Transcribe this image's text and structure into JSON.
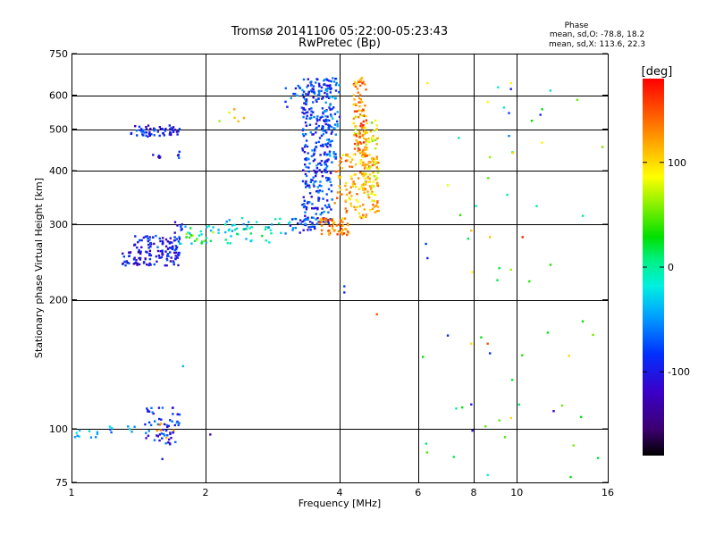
{
  "chart_data": {
    "type": "scatter",
    "title": "Tromsø 20141106 05:22:00-05:23:43",
    "subtitle": "RwPretec (Bp)",
    "xlabel": "Frequency [MHz]",
    "ylabel": "Stationary phase Virtual Height [km]",
    "x_scale": "log",
    "y_scale": "log",
    "xlim": [
      1,
      16
    ],
    "ylim": [
      75,
      750
    ],
    "x_ticks": [
      1,
      2,
      4,
      6,
      8,
      10,
      16
    ],
    "y_ticks": [
      75,
      100,
      200,
      300,
      400,
      500,
      600,
      750
    ],
    "x_grid": [
      2,
      4,
      6,
      8,
      10
    ],
    "y_grid": [
      100,
      200,
      300,
      400,
      500,
      600
    ],
    "grid": true,
    "phase_info": {
      "title": "Phase",
      "line_o": "mean, sd,O: -78.8, 18.2",
      "line_x": "mean, sd,X: 113.6, 22.3"
    },
    "colorbar": {
      "label": "[deg]",
      "min": -180,
      "max": 180,
      "ticks": [
        100,
        0,
        -100
      ],
      "position": "right"
    },
    "point_groups": [
      {
        "x": [
          1.36,
          1.75
        ],
        "y": [
          480,
          510
        ],
        "phase": -100,
        "n": 60
      },
      {
        "x": [
          1.5,
          1.6
        ],
        "y": [
          428,
          438
        ],
        "phase": -100,
        "n": 5
      },
      {
        "x": [
          1.72,
          1.76
        ],
        "y": [
          415,
          460
        ],
        "phase": -100,
        "n": 4
      },
      {
        "x": [
          1.3,
          1.75
        ],
        "y": [
          240,
          262
        ],
        "phase": -105,
        "n": 90
      },
      {
        "x": [
          1.38,
          1.75
        ],
        "y": [
          262,
          282
        ],
        "phase": -100,
        "n": 60
      },
      {
        "x": [
          1.7,
          1.78
        ],
        "y": [
          285,
          305
        ],
        "phase": -100,
        "n": 8
      },
      {
        "x": [
          1.75,
          2.9
        ],
        "y": [
          270,
          300
        ],
        "phase": -10,
        "n": 45
      },
      {
        "x": [
          1.8,
          2.1
        ],
        "y": [
          270,
          292
        ],
        "phase": 40,
        "n": 10
      },
      {
        "x": [
          2.2,
          3.2
        ],
        "y": [
          285,
          310
        ],
        "phase": -30,
        "n": 25
      },
      {
        "x": [
          3.0,
          3.5
        ],
        "y": [
          560,
          660
        ],
        "phase": -80,
        "n": 22
      },
      {
        "x": [
          3.1,
          3.55
        ],
        "y": [
          285,
          310
        ],
        "phase": -80,
        "n": 25
      },
      {
        "x": [
          3.3,
          3.85
        ],
        "y": [
          300,
          660
        ],
        "phase": -85,
        "n": 320
      },
      {
        "x": [
          3.7,
          4.0
        ],
        "y": [
          420,
          660
        ],
        "phase": -70,
        "n": 60
      },
      {
        "x": [
          3.6,
          4.2
        ],
        "y": [
          283,
          310
        ],
        "phase": 130,
        "n": 60
      },
      {
        "x": [
          3.9,
          4.9
        ],
        "y": [
          310,
          440
        ],
        "phase": 120,
        "n": 150
      },
      {
        "x": [
          4.3,
          4.6
        ],
        "y": [
          430,
          660
        ],
        "phase": 135,
        "n": 90
      },
      {
        "x": [
          4.5,
          4.9
        ],
        "y": [
          340,
          500
        ],
        "phase": 95,
        "n": 60
      },
      {
        "x": [
          4.3,
          4.9
        ],
        "y": [
          445,
          555
        ],
        "phase": 80,
        "n": 20
      },
      {
        "x": [
          2.1,
          2.6
        ],
        "y": [
          520,
          560
        ],
        "phase": 90,
        "n": 6
      },
      {
        "x": [
          1.0,
          1.15
        ],
        "y": [
          95,
          100
        ],
        "phase": -50,
        "n": 10
      },
      {
        "x": [
          1.2,
          1.4
        ],
        "y": [
          97,
          103
        ],
        "phase": -60,
        "n": 8
      },
      {
        "x": [
          1.45,
          1.75
        ],
        "y": [
          92,
          112
        ],
        "phase": -90,
        "n": 60
      },
      {
        "x": [
          1.55,
          1.7
        ],
        "y": [
          95,
          103
        ],
        "phase": 130,
        "n": 6
      },
      {
        "x": [
          6.0,
          16.0
        ],
        "y": [
          75,
          650
        ],
        "phase": 20,
        "n": 40
      }
    ],
    "single_points": [
      {
        "x": 4.85,
        "y": 185,
        "phase": 150
      },
      {
        "x": 4.1,
        "y": 215,
        "phase": -80
      },
      {
        "x": 4.1,
        "y": 208,
        "phase": -90
      },
      {
        "x": 1.78,
        "y": 140,
        "phase": -40
      },
      {
        "x": 1.6,
        "y": 85,
        "phase": -100
      },
      {
        "x": 2.05,
        "y": 97,
        "phase": -130
      },
      {
        "x": 6.3,
        "y": 640,
        "phase": 90
      },
      {
        "x": 6.25,
        "y": 270,
        "phase": -80
      },
      {
        "x": 6.3,
        "y": 250,
        "phase": -100
      },
      {
        "x": 7.0,
        "y": 165,
        "phase": -90
      },
      {
        "x": 7.0,
        "y": 370,
        "phase": 80
      },
      {
        "x": 7.9,
        "y": 290,
        "phase": 110
      },
      {
        "x": 7.95,
        "y": 232,
        "phase": 90
      },
      {
        "x": 7.9,
        "y": 158,
        "phase": 100
      },
      {
        "x": 7.9,
        "y": 114,
        "phase": -100
      },
      {
        "x": 7.95,
        "y": 99,
        "phase": -110
      },
      {
        "x": 8.6,
        "y": 578,
        "phase": 85
      },
      {
        "x": 8.7,
        "y": 430,
        "phase": 60
      },
      {
        "x": 8.7,
        "y": 280,
        "phase": 110
      },
      {
        "x": 8.6,
        "y": 158,
        "phase": 150
      },
      {
        "x": 8.7,
        "y": 150,
        "phase": -90
      },
      {
        "x": 8.6,
        "y": 78,
        "phase": -20
      },
      {
        "x": 9.7,
        "y": 640,
        "phase": 90
      },
      {
        "x": 9.7,
        "y": 620,
        "phase": -100
      },
      {
        "x": 9.6,
        "y": 545,
        "phase": -80
      },
      {
        "x": 9.6,
        "y": 482,
        "phase": -60
      },
      {
        "x": 9.8,
        "y": 440,
        "phase": 100
      },
      {
        "x": 9.7,
        "y": 235,
        "phase": 60
      },
      {
        "x": 9.7,
        "y": 106,
        "phase": 100
      },
      {
        "x": 10.3,
        "y": 280,
        "phase": 170
      },
      {
        "x": 11.3,
        "y": 540,
        "phase": -90
      },
      {
        "x": 11.4,
        "y": 465,
        "phase": 90
      },
      {
        "x": 11.9,
        "y": 615,
        "phase": -30
      },
      {
        "x": 12.1,
        "y": 110,
        "phase": -120
      },
      {
        "x": 13.1,
        "y": 148,
        "phase": 100
      }
    ]
  }
}
